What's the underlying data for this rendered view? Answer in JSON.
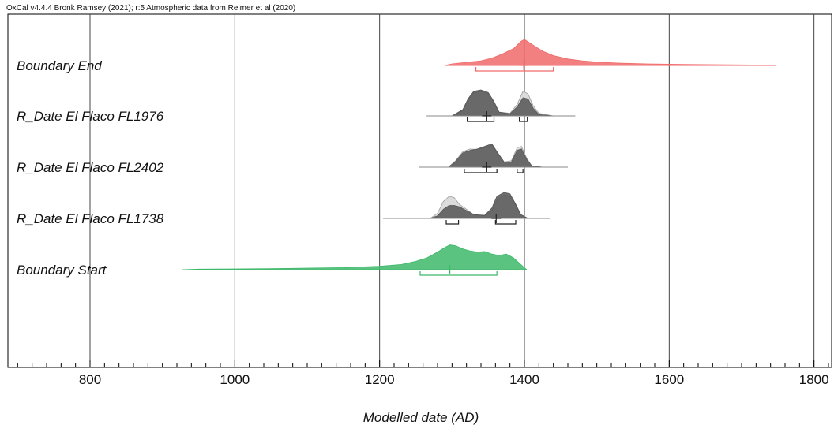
{
  "chart_data": {
    "type": "area",
    "header": "OxCal v4.4.4 Bronk Ramsey (2021); r:5 Atmospheric data from Reimer et al (2020)",
    "xlabel": "Modelled date (AD)",
    "xlim": [
      690,
      1830
    ],
    "xticks": [
      800,
      1000,
      1200,
      1400,
      1600,
      1800
    ],
    "minor_tick_step": 20,
    "grid": true,
    "series": [
      {
        "name": "Boundary End",
        "color": "#f06a6a",
        "median": 1399,
        "range_68": [
          [
            1333,
            1440
          ]
        ],
        "modelled": [
          [
            1290,
            0
          ],
          [
            1300,
            0.06
          ],
          [
            1320,
            0.12
          ],
          [
            1340,
            0.18
          ],
          [
            1355,
            0.28
          ],
          [
            1370,
            0.45
          ],
          [
            1385,
            0.65
          ],
          [
            1395,
            0.92
          ],
          [
            1400,
            1.0
          ],
          [
            1410,
            0.82
          ],
          [
            1425,
            0.55
          ],
          [
            1440,
            0.38
          ],
          [
            1460,
            0.25
          ],
          [
            1480,
            0.18
          ],
          [
            1500,
            0.13
          ],
          [
            1530,
            0.09
          ],
          [
            1570,
            0.06
          ],
          [
            1620,
            0.04
          ],
          [
            1680,
            0.025
          ],
          [
            1745,
            0.01
          ],
          [
            1748,
            0
          ]
        ]
      },
      {
        "name": "R_Date El Flaco FL1976",
        "color": "#555555",
        "median": 1348,
        "range_68": [
          [
            1321,
            1358
          ],
          [
            1393,
            1404
          ]
        ],
        "unmodelled": [
          [
            1265,
            0
          ],
          [
            1300,
            0
          ],
          [
            1315,
            0.2
          ],
          [
            1322,
            0.6
          ],
          [
            1330,
            0.9
          ],
          [
            1340,
            0.95
          ],
          [
            1350,
            0.85
          ],
          [
            1358,
            0.5
          ],
          [
            1365,
            0.15
          ],
          [
            1380,
            0.1
          ],
          [
            1390,
            0.45
          ],
          [
            1398,
            0.95
          ],
          [
            1405,
            0.85
          ],
          [
            1412,
            0.4
          ],
          [
            1420,
            0.1
          ],
          [
            1440,
            0
          ],
          [
            1470,
            0
          ]
        ],
        "modelled": [
          [
            1265,
            0
          ],
          [
            1300,
            0
          ],
          [
            1315,
            0.25
          ],
          [
            1322,
            0.65
          ],
          [
            1330,
            0.95
          ],
          [
            1340,
            1.0
          ],
          [
            1350,
            0.9
          ],
          [
            1358,
            0.55
          ],
          [
            1365,
            0.15
          ],
          [
            1380,
            0.08
          ],
          [
            1390,
            0.35
          ],
          [
            1398,
            0.7
          ],
          [
            1405,
            0.65
          ],
          [
            1412,
            0.3
          ],
          [
            1420,
            0.05
          ],
          [
            1440,
            0
          ],
          [
            1470,
            0
          ]
        ]
      },
      {
        "name": "R_Date El Flaco FL2402",
        "color": "#555555",
        "median": 1348,
        "range_68": [
          [
            1317,
            1362
          ],
          [
            1390,
            1398
          ]
        ],
        "unmodelled": [
          [
            1255,
            0
          ],
          [
            1295,
            0
          ],
          [
            1305,
            0.25
          ],
          [
            1315,
            0.6
          ],
          [
            1325,
            0.7
          ],
          [
            1335,
            0.68
          ],
          [
            1345,
            0.75
          ],
          [
            1355,
            0.85
          ],
          [
            1362,
            0.55
          ],
          [
            1372,
            0.2
          ],
          [
            1382,
            0.25
          ],
          [
            1390,
            0.75
          ],
          [
            1396,
            0.8
          ],
          [
            1403,
            0.35
          ],
          [
            1410,
            0.05
          ],
          [
            1425,
            0
          ],
          [
            1460,
            0
          ]
        ],
        "modelled": [
          [
            1255,
            0
          ],
          [
            1295,
            0
          ],
          [
            1305,
            0.22
          ],
          [
            1315,
            0.55
          ],
          [
            1325,
            0.65
          ],
          [
            1335,
            0.7
          ],
          [
            1345,
            0.8
          ],
          [
            1355,
            0.9
          ],
          [
            1362,
            0.6
          ],
          [
            1372,
            0.2
          ],
          [
            1382,
            0.2
          ],
          [
            1390,
            0.65
          ],
          [
            1396,
            0.7
          ],
          [
            1403,
            0.3
          ],
          [
            1410,
            0.05
          ],
          [
            1425,
            0
          ],
          [
            1460,
            0
          ]
        ]
      },
      {
        "name": "R_Date El Flaco FL1738",
        "color": "#555555",
        "median": 1361,
        "range_68": [
          [
            1292,
            1309
          ],
          [
            1360,
            1388
          ]
        ],
        "unmodelled": [
          [
            1205,
            0
          ],
          [
            1270,
            0
          ],
          [
            1280,
            0.2
          ],
          [
            1288,
            0.65
          ],
          [
            1296,
            0.85
          ],
          [
            1303,
            0.8
          ],
          [
            1310,
            0.55
          ],
          [
            1320,
            0.35
          ],
          [
            1330,
            0.15
          ],
          [
            1345,
            0.1
          ],
          [
            1355,
            0.3
          ],
          [
            1362,
            0.7
          ],
          [
            1372,
            0.9
          ],
          [
            1380,
            0.85
          ],
          [
            1388,
            0.5
          ],
          [
            1395,
            0.15
          ],
          [
            1405,
            0
          ],
          [
            1435,
            0
          ]
        ],
        "modelled": [
          [
            1205,
            0
          ],
          [
            1270,
            0
          ],
          [
            1280,
            0.1
          ],
          [
            1288,
            0.35
          ],
          [
            1296,
            0.5
          ],
          [
            1303,
            0.5
          ],
          [
            1310,
            0.45
          ],
          [
            1320,
            0.3
          ],
          [
            1330,
            0.15
          ],
          [
            1345,
            0.12
          ],
          [
            1355,
            0.4
          ],
          [
            1362,
            0.85
          ],
          [
            1372,
            1.0
          ],
          [
            1380,
            0.95
          ],
          [
            1388,
            0.55
          ],
          [
            1395,
            0.15
          ],
          [
            1405,
            0
          ],
          [
            1435,
            0
          ]
        ]
      },
      {
        "name": "Boundary Start",
        "color": "#3db86a",
        "median": 1297,
        "range_68": [
          [
            1256,
            1362
          ]
        ],
        "modelled": [
          [
            928,
            0
          ],
          [
            950,
            0.02
          ],
          [
            1000,
            0.03
          ],
          [
            1050,
            0.04
          ],
          [
            1100,
            0.06
          ],
          [
            1150,
            0.08
          ],
          [
            1200,
            0.13
          ],
          [
            1230,
            0.2
          ],
          [
            1250,
            0.32
          ],
          [
            1265,
            0.45
          ],
          [
            1280,
            0.68
          ],
          [
            1290,
            0.85
          ],
          [
            1297,
            0.95
          ],
          [
            1305,
            0.92
          ],
          [
            1315,
            0.8
          ],
          [
            1325,
            0.72
          ],
          [
            1335,
            0.68
          ],
          [
            1345,
            0.7
          ],
          [
            1355,
            0.6
          ],
          [
            1365,
            0.55
          ],
          [
            1375,
            0.6
          ],
          [
            1385,
            0.45
          ],
          [
            1395,
            0.2
          ],
          [
            1403,
            0
          ]
        ]
      }
    ]
  }
}
